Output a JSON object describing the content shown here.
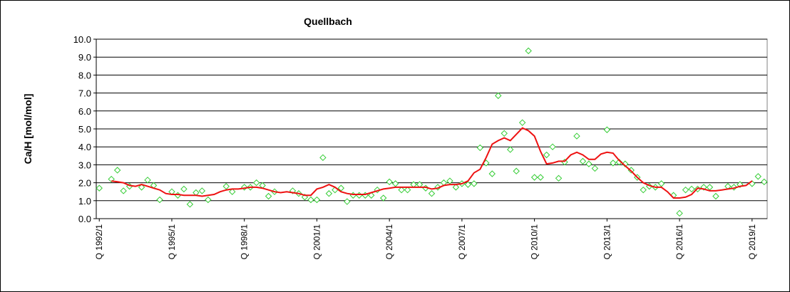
{
  "chart_data": {
    "type": "line",
    "title": "Quellbach",
    "y_label": "Ca/H [mol/mol]",
    "categories": [
      "Q 1992/1",
      null,
      null,
      null,
      null,
      null,
      null,
      null,
      null,
      null,
      null,
      null,
      "Q 1995/1",
      null,
      null,
      null,
      null,
      null,
      null,
      null,
      null,
      null,
      null,
      null,
      "Q 1998/1",
      null,
      null,
      null,
      null,
      null,
      null,
      null,
      null,
      null,
      null,
      null,
      "Q 2001/1",
      null,
      null,
      null,
      null,
      null,
      null,
      null,
      null,
      null,
      null,
      null,
      "Q 2004/1",
      null,
      null,
      null,
      null,
      null,
      null,
      null,
      null,
      null,
      null,
      null,
      "Q 2007/1",
      null,
      null,
      null,
      null,
      null,
      null,
      null,
      null,
      null,
      null,
      null,
      "Q 2010/1",
      null,
      null,
      null,
      null,
      null,
      null,
      null,
      null,
      null,
      null,
      null,
      "Q 2013/1",
      null,
      null,
      null,
      null,
      null,
      null,
      null,
      null,
      null,
      null,
      null,
      "Q 2016/1",
      null,
      null,
      null,
      null,
      null,
      null,
      null,
      null,
      null,
      null,
      null,
      "Q 2019/1",
      null,
      null
    ],
    "series": [
      {
        "style": "markers",
        "color": "#33cc33",
        "values": [
          1.7,
          null,
          2.2,
          2.7,
          1.55,
          1.8,
          null,
          1.75,
          2.15,
          1.85,
          1.05,
          null,
          1.5,
          1.3,
          1.65,
          0.8,
          1.45,
          1.55,
          1.05,
          null,
          null,
          1.8,
          1.5,
          null,
          1.75,
          1.75,
          2.0,
          1.85,
          1.25,
          1.5,
          null,
          null,
          1.55,
          1.4,
          1.2,
          1.05,
          1.05,
          3.4,
          1.4,
          1.6,
          1.7,
          0.95,
          1.3,
          1.3,
          1.3,
          1.3,
          1.6,
          1.15,
          2.05,
          1.95,
          1.6,
          1.6,
          1.9,
          1.9,
          1.7,
          1.4,
          1.75,
          2.0,
          2.1,
          1.75,
          1.95,
          1.9,
          1.95,
          3.95,
          3.1,
          2.5,
          6.85,
          4.75,
          3.85,
          2.65,
          5.35,
          9.35,
          2.3,
          2.3,
          3.55,
          4.0,
          2.25,
          3.15,
          null,
          4.6,
          3.2,
          3.05,
          2.8,
          null,
          4.95,
          3.1,
          3.15,
          3.05,
          2.7,
          2.3,
          1.6,
          1.8,
          1.75,
          1.95,
          null,
          1.3,
          0.3,
          1.6,
          1.65,
          1.65,
          1.75,
          1.75,
          1.25,
          null,
          1.8,
          1.75,
          1.9,
          null,
          1.95,
          2.35,
          2.05
        ]
      },
      {
        "style": "line",
        "color": "#ee1111",
        "values": [
          null,
          null,
          2.1,
          2.05,
          2.0,
          1.85,
          1.8,
          1.9,
          1.8,
          1.7,
          1.6,
          1.4,
          1.35,
          1.35,
          1.3,
          1.3,
          1.3,
          1.25,
          1.3,
          1.35,
          1.5,
          1.6,
          1.65,
          1.65,
          1.7,
          1.75,
          1.75,
          1.7,
          1.6,
          1.5,
          1.45,
          1.5,
          1.45,
          1.4,
          1.3,
          1.3,
          1.65,
          1.75,
          1.9,
          1.75,
          1.5,
          1.4,
          1.35,
          1.35,
          1.35,
          1.45,
          1.55,
          1.65,
          1.7,
          1.75,
          1.75,
          1.75,
          1.75,
          1.75,
          1.75,
          1.65,
          1.7,
          1.85,
          1.9,
          1.9,
          1.95,
          2.1,
          2.55,
          2.75,
          3.4,
          4.15,
          4.35,
          4.5,
          4.35,
          4.7,
          5.05,
          4.9,
          4.6,
          3.75,
          3.05,
          3.1,
          3.2,
          3.2,
          3.55,
          3.7,
          3.55,
          3.3,
          3.3,
          3.6,
          3.7,
          3.65,
          3.25,
          2.95,
          2.65,
          2.3,
          2.0,
          1.85,
          1.75,
          1.75,
          1.5,
          1.15,
          1.15,
          1.2,
          1.35,
          1.7,
          1.65,
          1.55,
          1.55,
          1.6,
          1.65,
          1.7,
          1.8,
          1.85,
          2.1,
          null,
          null
        ]
      }
    ],
    "ylim": [
      0,
      10
    ],
    "yticks": [
      {
        "value": 0,
        "label": "0.0"
      },
      {
        "value": 1,
        "label": "1.0"
      },
      {
        "value": 2,
        "label": "2.0"
      },
      {
        "value": 3,
        "label": "3.0"
      },
      {
        "value": 4,
        "label": "4.0"
      },
      {
        "value": 5,
        "label": "5.0"
      },
      {
        "value": 6,
        "label": "6.0"
      },
      {
        "value": 7,
        "label": "7.0"
      },
      {
        "value": 8,
        "label": "8.0"
      },
      {
        "value": 9,
        "label": "9.0"
      },
      {
        "value": 10,
        "label": "10.0"
      }
    ],
    "grid": true
  }
}
